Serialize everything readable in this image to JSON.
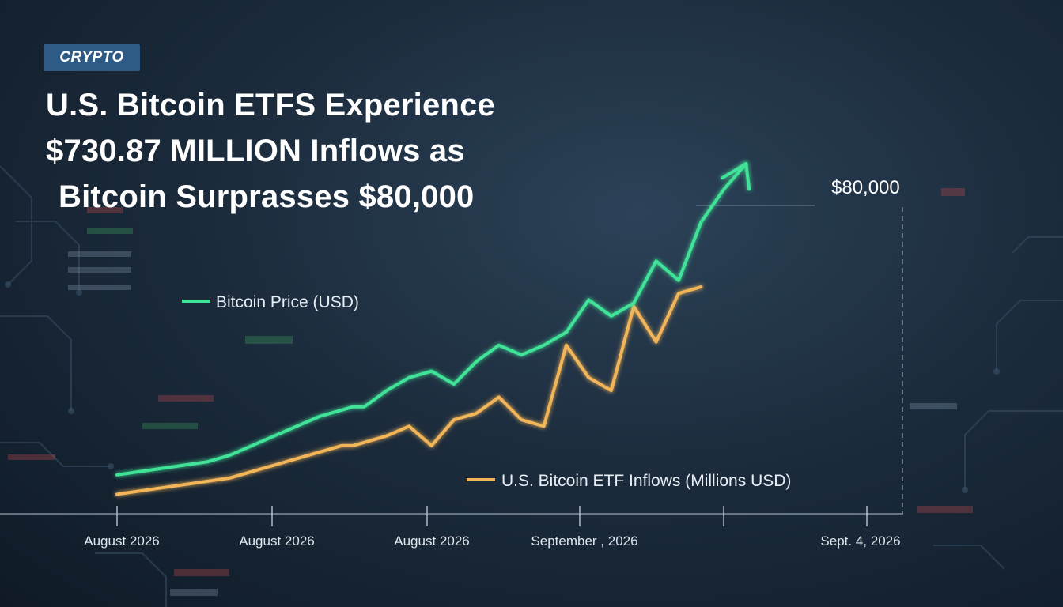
{
  "tag": "CRYPTO",
  "headline": {
    "line1": "U.S. Bitcoin ETFS Experience",
    "line2": "$730.87 MILLION Inflows as",
    "line3": "Bitcoin Surprasses $80,000"
  },
  "colors": {
    "price": "#3fe397",
    "inflows": "#f2b558",
    "tag_bg": "#2e5a86",
    "background": "#1c2c3d"
  },
  "chart_data": {
    "type": "line",
    "x_ticks": [
      "August 2026",
      "August 2026",
      "August 2026",
      "September , 2026",
      "",
      "Sept. 4, 2026"
    ],
    "annotation": "$80,000",
    "ylim": [
      0,
      100
    ],
    "legend_placement": "inline",
    "grid": false,
    "series": [
      {
        "name": "Bitcoin Price (USD)",
        "x": [
          0,
          4,
          8,
          10,
          12,
          14,
          16,
          18,
          20,
          21,
          22,
          24,
          26,
          28,
          30,
          32,
          34,
          36,
          38,
          40,
          42,
          44,
          46,
          48,
          50,
          52,
          54,
          56
        ],
        "values": [
          12,
          14,
          16,
          18,
          21,
          24,
          27,
          30,
          32,
          33,
          33,
          38,
          42,
          44,
          40,
          47,
          52,
          49,
          52,
          56,
          66,
          61,
          65,
          78,
          72,
          90,
          100,
          108
        ]
      },
      {
        "name": "U.S. Bitcoin ETF Inflows (Millions USD)",
        "x": [
          0,
          4,
          8,
          10,
          12,
          14,
          16,
          18,
          20,
          21,
          22,
          24,
          26,
          28,
          30,
          32,
          34,
          36,
          38,
          40,
          42,
          44,
          46,
          48,
          50,
          52
        ],
        "values": [
          6,
          8,
          10,
          11,
          13,
          15,
          17,
          19,
          21,
          21,
          22,
          24,
          27,
          21,
          29,
          31,
          36,
          29,
          27,
          52,
          42,
          38,
          64,
          53,
          68,
          70
        ]
      }
    ]
  }
}
